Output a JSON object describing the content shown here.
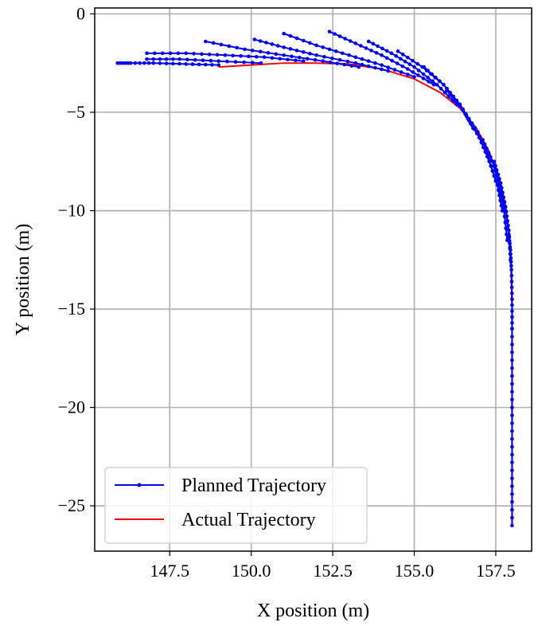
{
  "chart_data": {
    "type": "line",
    "xlabel": "X position (m)",
    "ylabel": "Y position (m)",
    "xlim": [
      145.2,
      158.6
    ],
    "ylim": [
      -27.3,
      0.3
    ],
    "xticks": [
      147.5,
      150.0,
      152.5,
      155.0,
      157.5
    ],
    "xtick_labels": [
      "147.5",
      "150.0",
      "152.5",
      "155.0",
      "157.5"
    ],
    "yticks": [
      0,
      -5,
      -10,
      -15,
      -20,
      -25
    ],
    "ytick_labels": [
      "0",
      "−5",
      "−10",
      "−15",
      "−20",
      "−25"
    ],
    "grid": true,
    "legend_position": "lower-left",
    "colors": {
      "planned": "#0000ff",
      "actual": "#ff0000"
    },
    "series": [
      {
        "name": "Planned Trajectory",
        "style": "line-with-markers",
        "segments": [
          [
            [
              158.0,
              -26.0
            ],
            [
              158.0,
              -24.0
            ],
            [
              158.0,
              -22.0
            ],
            [
              158.0,
              -20.0
            ],
            [
              158.0,
              -18.0
            ],
            [
              158.0,
              -16.0
            ]
          ],
          [
            [
              158.0,
              -16.0
            ],
            [
              158.0,
              -14.5
            ],
            [
              157.98,
              -13.0
            ],
            [
              157.95,
              -12.0
            ],
            [
              157.9,
              -11.2
            ]
          ],
          [
            [
              157.95,
              -12.5
            ],
            [
              157.9,
              -11.0
            ],
            [
              157.8,
              -9.8
            ],
            [
              157.65,
              -8.6
            ],
            [
              157.45,
              -7.5
            ]
          ],
          [
            [
              157.85,
              -11.5
            ],
            [
              157.75,
              -10.0
            ],
            [
              157.6,
              -8.7
            ],
            [
              157.4,
              -7.5
            ],
            [
              157.1,
              -6.4
            ]
          ],
          [
            [
              157.7,
              -10.0
            ],
            [
              157.55,
              -8.7
            ],
            [
              157.3,
              -7.5
            ],
            [
              157.0,
              -6.3
            ],
            [
              156.6,
              -5.2
            ]
          ],
          [
            [
              157.5,
              -8.5
            ],
            [
              157.25,
              -7.2
            ],
            [
              156.95,
              -6.0
            ],
            [
              156.5,
              -4.9
            ],
            [
              156.0,
              -3.9
            ]
          ],
          [
            [
              157.2,
              -7.0
            ],
            [
              156.85,
              -5.8
            ],
            [
              156.4,
              -4.6
            ],
            [
              155.9,
              -3.6
            ],
            [
              155.3,
              -2.7
            ]
          ],
          [
            [
              156.8,
              -5.8
            ],
            [
              156.4,
              -4.6
            ],
            [
              155.9,
              -3.6
            ],
            [
              155.25,
              -2.7
            ],
            [
              154.5,
              -1.9
            ]
          ],
          [
            [
              156.3,
              -4.6
            ],
            [
              155.7,
              -3.6
            ],
            [
              155.0,
              -2.7
            ],
            [
              154.3,
              -2.0
            ],
            [
              153.6,
              -1.4
            ]
          ],
          [
            [
              155.6,
              -3.6
            ],
            [
              154.8,
              -2.8
            ],
            [
              154.0,
              -2.1
            ],
            [
              153.2,
              -1.5
            ],
            [
              152.4,
              -0.9
            ]
          ],
          [
            [
              155.0,
              -3.2
            ],
            [
              154.0,
              -2.6
            ],
            [
              153.0,
              -2.1
            ],
            [
              152.0,
              -1.6
            ],
            [
              151.0,
              -1.0
            ]
          ],
          [
            [
              154.2,
              -2.9
            ],
            [
              153.2,
              -2.5
            ],
            [
              152.0,
              -2.1
            ],
            [
              151.0,
              -1.7
            ],
            [
              150.1,
              -1.3
            ]
          ],
          [
            [
              153.3,
              -2.7
            ],
            [
              152.2,
              -2.4
            ],
            [
              151.0,
              -2.1
            ],
            [
              149.8,
              -1.8
            ],
            [
              148.6,
              -1.4
            ]
          ],
          [
            [
              151.6,
              -2.4
            ],
            [
              150.4,
              -2.2
            ],
            [
              149.2,
              -2.1
            ],
            [
              148.0,
              -2.0
            ],
            [
              146.8,
              -2.0
            ]
          ],
          [
            [
              150.3,
              -2.5
            ],
            [
              149.0,
              -2.4
            ],
            [
              147.8,
              -2.3
            ],
            [
              146.8,
              -2.3
            ]
          ],
          [
            [
              149.0,
              -2.6
            ],
            [
              148.0,
              -2.55
            ],
            [
              147.0,
              -2.5
            ],
            [
              146.3,
              -2.5
            ],
            [
              145.9,
              -2.5
            ]
          ]
        ]
      },
      {
        "name": "Actual Trajectory",
        "style": "line",
        "points": [
          [
            149.0,
            -2.7
          ],
          [
            150.0,
            -2.6
          ],
          [
            151.0,
            -2.5
          ],
          [
            152.0,
            -2.5
          ],
          [
            153.0,
            -2.55
          ],
          [
            154.0,
            -2.8
          ],
          [
            155.0,
            -3.3
          ],
          [
            155.8,
            -4.0
          ],
          [
            156.4,
            -4.8
          ],
          [
            156.9,
            -5.8
          ],
          [
            157.3,
            -7.0
          ],
          [
            157.6,
            -8.5
          ],
          [
            157.8,
            -10.0
          ],
          [
            157.92,
            -11.5
          ],
          [
            157.97,
            -13.0
          ],
          [
            158.0,
            -15.0
          ],
          [
            158.0,
            -20.0
          ],
          [
            158.0,
            -26.0
          ]
        ]
      }
    ]
  }
}
